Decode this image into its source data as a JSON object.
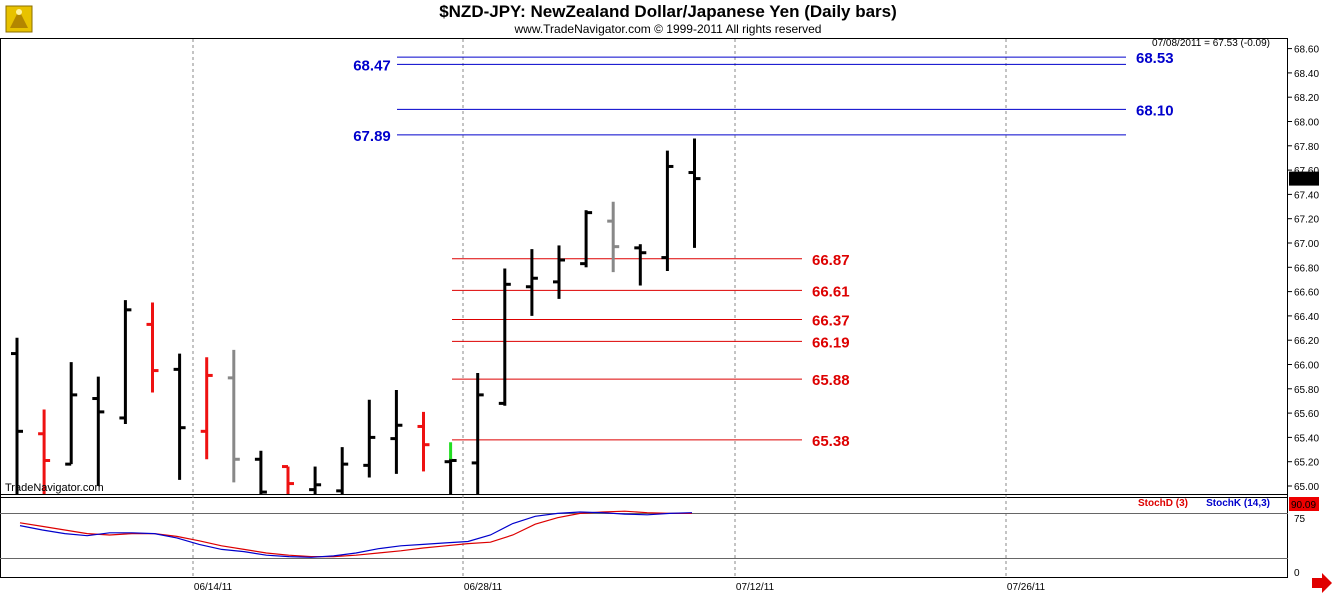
{
  "header": {
    "title": "$NZD-JPY:  NewZealand Dollar/Japanese Yen  (Daily bars)",
    "copyright": "www.TradeNavigator.com © 1999-2011 All rights reserved",
    "last_quote": "07/08/2011 = 67.53 (-0.09)",
    "watermark": "TradeNavigator.com"
  },
  "colors": {
    "up_bar": "#000000",
    "down_bar": "#ee1111",
    "neutral_bar": "#888888",
    "highlight_bar": "#22dd22",
    "resistance": "#0000cc",
    "support": "#dd0000",
    "stochd": "#dd0000",
    "stochk": "#0000cc"
  },
  "chart_data": {
    "type": "ohlc",
    "price_axis": {
      "min": 64.93,
      "max": 68.65,
      "ticks": [
        "68.60",
        "68.40",
        "68.20",
        "68.00",
        "67.80",
        "67.60",
        "67.40",
        "67.20",
        "67.00",
        "66.80",
        "66.60",
        "66.40",
        "66.20",
        "66.00",
        "65.80",
        "65.60",
        "65.40",
        "65.20",
        "65.00"
      ],
      "current_value_label": "67.53"
    },
    "date_labels": [
      "06/14/11",
      "06/28/11",
      "07/12/11",
      "07/26/11"
    ],
    "bars": [
      {
        "o": 66.09,
        "h": 66.22,
        "l": 64.93,
        "c": 65.45,
        "color": "up"
      },
      {
        "o": 65.43,
        "h": 65.63,
        "l": 64.93,
        "c": 65.21,
        "color": "down"
      },
      {
        "o": 65.18,
        "h": 66.02,
        "l": 65.18,
        "c": 65.75,
        "color": "up"
      },
      {
        "o": 65.72,
        "h": 65.9,
        "l": 65.0,
        "c": 65.61,
        "color": "up"
      },
      {
        "o": 65.56,
        "h": 66.53,
        "l": 65.51,
        "c": 66.45,
        "color": "up"
      },
      {
        "o": 66.33,
        "h": 66.51,
        "l": 65.77,
        "c": 65.95,
        "color": "down"
      },
      {
        "o": 65.96,
        "h": 66.09,
        "l": 65.05,
        "c": 65.48,
        "color": "up"
      },
      {
        "o": 65.45,
        "h": 66.06,
        "l": 65.22,
        "c": 65.91,
        "color": "down"
      },
      {
        "o": 65.89,
        "h": 66.12,
        "l": 65.03,
        "c": 65.22,
        "color": "neutral"
      },
      {
        "o": 65.22,
        "h": 65.29,
        "l": 64.93,
        "c": 64.95,
        "color": "up"
      },
      {
        "o": 65.16,
        "h": 65.16,
        "l": 64.93,
        "c": 65.02,
        "color": "down"
      },
      {
        "o": 64.97,
        "h": 65.16,
        "l": 64.93,
        "c": 65.01,
        "color": "up"
      },
      {
        "o": 64.96,
        "h": 65.32,
        "l": 64.93,
        "c": 65.18,
        "color": "up"
      },
      {
        "o": 65.17,
        "h": 65.71,
        "l": 65.07,
        "c": 65.4,
        "color": "up"
      },
      {
        "o": 65.39,
        "h": 65.79,
        "l": 65.1,
        "c": 65.5,
        "color": "up"
      },
      {
        "o": 65.49,
        "h": 65.61,
        "l": 65.12,
        "c": 65.34,
        "color": "down"
      },
      {
        "o": 65.2,
        "h": 65.23,
        "l": 64.93,
        "c": 65.21,
        "color": "up"
      },
      {
        "o": 65.19,
        "h": 65.93,
        "l": 64.93,
        "c": 65.75,
        "color": "up"
      },
      {
        "o": 65.68,
        "h": 66.79,
        "l": 65.66,
        "c": 66.66,
        "color": "up"
      },
      {
        "o": 66.64,
        "h": 66.95,
        "l": 66.4,
        "c": 66.71,
        "color": "up"
      },
      {
        "o": 66.68,
        "h": 66.98,
        "l": 66.54,
        "c": 66.86,
        "color": "up"
      },
      {
        "o": 66.83,
        "h": 67.27,
        "l": 66.8,
        "c": 67.25,
        "color": "up"
      },
      {
        "o": 67.18,
        "h": 67.34,
        "l": 66.76,
        "c": 66.97,
        "color": "neutral"
      },
      {
        "o": 66.96,
        "h": 66.99,
        "l": 66.65,
        "c": 66.92,
        "color": "up"
      },
      {
        "o": 66.88,
        "h": 67.76,
        "l": 66.77,
        "c": 67.63,
        "color": "up"
      },
      {
        "o": 67.58,
        "h": 67.86,
        "l": 66.96,
        "c": 67.53,
        "color": "up"
      }
    ],
    "highlight_bar": {
      "index": 16,
      "from": 65.22,
      "to": 65.36
    },
    "resistance_levels": [
      {
        "value": 68.53,
        "label": "68.53",
        "side": "right"
      },
      {
        "value": 68.47,
        "label": "68.47",
        "side": "left"
      },
      {
        "value": 68.1,
        "label": "68.10",
        "side": "right"
      },
      {
        "value": 67.89,
        "label": "67.89",
        "side": "left"
      }
    ],
    "support_levels": [
      {
        "value": 66.87,
        "label": "66.87"
      },
      {
        "value": 66.61,
        "label": "66.61"
      },
      {
        "value": 66.37,
        "label": "66.37"
      },
      {
        "value": 66.19,
        "label": "66.19"
      },
      {
        "value": 65.88,
        "label": "65.88"
      },
      {
        "value": 65.38,
        "label": "65.38"
      }
    ],
    "stochastic": {
      "axis": {
        "min": 0,
        "max": 100,
        "ticks": [
          "75",
          "0"
        ],
        "current_value_label": "90.09",
        "reference_level": 75
      },
      "legend": {
        "stochd": "StochD (3)",
        "stochk": "StochK (14,3)"
      },
      "stochd": [
        77,
        72,
        67,
        62,
        60,
        62,
        62,
        58,
        52,
        45,
        40,
        35,
        32,
        30,
        30,
        32,
        35,
        38,
        42,
        45,
        48,
        50,
        60,
        75,
        84,
        90,
        92,
        93,
        91,
        90,
        90
      ],
      "stochk": [
        73,
        67,
        62,
        59,
        63,
        63,
        62,
        56,
        47,
        40,
        37,
        32,
        30,
        29,
        31,
        35,
        41,
        45,
        47,
        49,
        51,
        60,
        76,
        86,
        90,
        92,
        91,
        89,
        88,
        90,
        91
      ]
    }
  }
}
